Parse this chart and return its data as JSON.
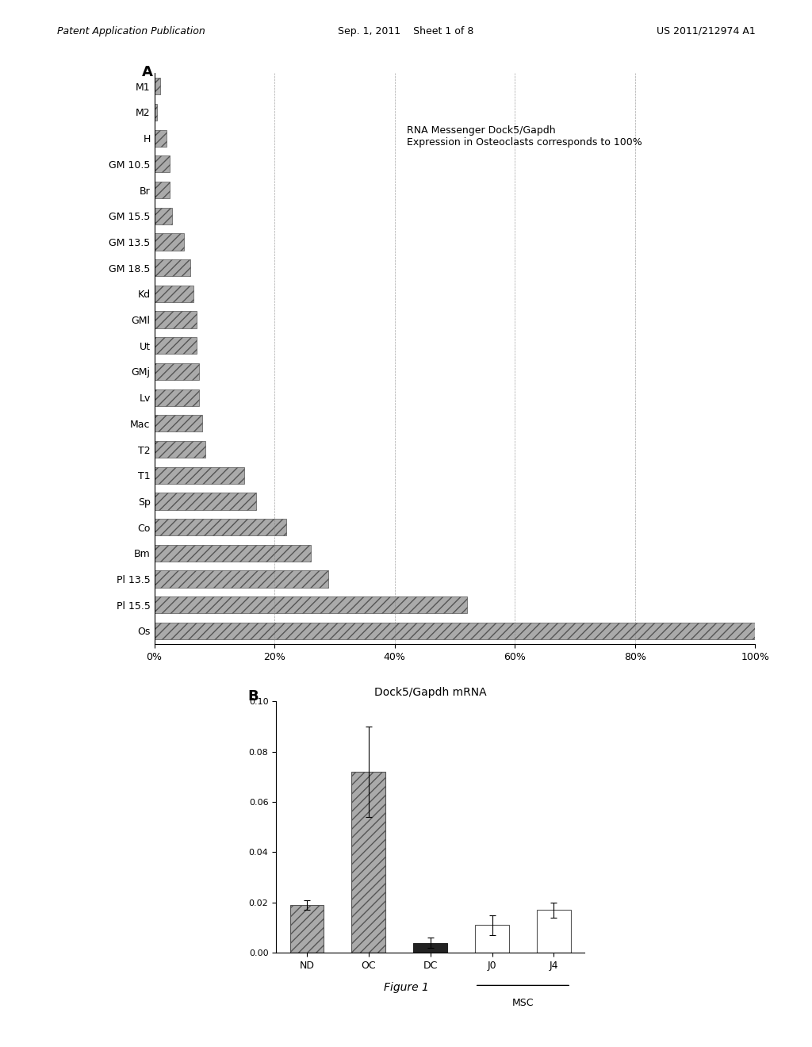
{
  "panel_A": {
    "label": "A",
    "categories": [
      "M1",
      "M2",
      "H",
      "GM 10.5",
      "Br",
      "GM 15.5",
      "GM 13.5",
      "GM 18.5",
      "Kd",
      "GMl",
      "Ut",
      "GMj",
      "Lv",
      "Mac",
      "T2",
      "T1",
      "Sp",
      "Co",
      "Bm",
      "Pl 13.5",
      "Pl 15.5",
      "Os"
    ],
    "values": [
      1.0,
      0.5,
      2.0,
      2.5,
      2.5,
      3.0,
      5.0,
      6.0,
      6.5,
      7.0,
      7.0,
      7.5,
      7.5,
      8.0,
      8.5,
      15.0,
      17.0,
      22.0,
      26.0,
      29.0,
      52.0,
      100.0
    ],
    "annotation_line1": "RNA Messenger Dock5/Gapdh",
    "annotation_line2": "Expression in Osteoclasts corresponds to 100%",
    "xlim": [
      0,
      100
    ],
    "xtick_labels": [
      "0%",
      "20%",
      "40%",
      "60%",
      "80%",
      "100%"
    ],
    "xtick_values": [
      0,
      20,
      40,
      60,
      80,
      100
    ]
  },
  "panel_B": {
    "label": "B",
    "title": "Dock5/Gapdh mRNA",
    "categories": [
      "ND",
      "OC",
      "DC",
      "J0",
      "J4"
    ],
    "values": [
      0.019,
      0.072,
      0.004,
      0.011,
      0.017
    ],
    "errors": [
      0.002,
      0.018,
      0.002,
      0.004,
      0.003
    ],
    "bar_colors": [
      "hatch_gray",
      "hatch_gray",
      "black",
      "white",
      "white"
    ],
    "hatches": [
      "///",
      "///",
      "",
      "",
      ""
    ],
    "ylim": [
      0,
      0.1
    ],
    "ytick_values": [
      0,
      0.02,
      0.04,
      0.06,
      0.08,
      0.1
    ],
    "xlabel_group": "MSC",
    "figure_label": "Figure 1"
  },
  "background_color": "#ffffff",
  "header_left": "Patent Application Publication",
  "header_center": "Sep. 1, 2011    Sheet 1 of 8",
  "header_right": "US 2011/212974 A1"
}
